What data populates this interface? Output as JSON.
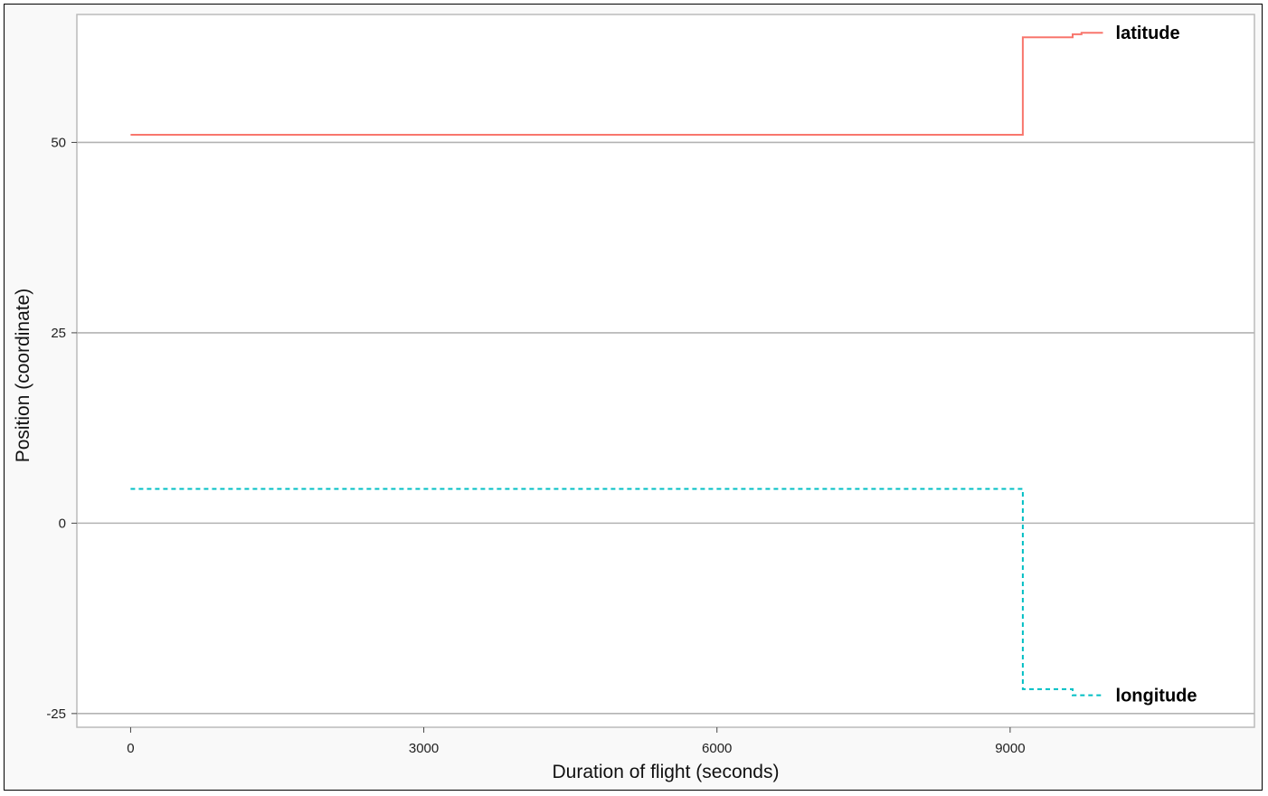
{
  "chart_data": {
    "type": "line",
    "title": "",
    "xlabel": "Duration of flight (seconds)",
    "ylabel": "Position (coordinate)",
    "xlim": [
      -550,
      11500
    ],
    "ylim": [
      -26.8,
      66.8
    ],
    "x_ticks": [
      0,
      3000,
      6000,
      9000
    ],
    "y_ticks": [
      -25,
      0,
      25,
      50
    ],
    "grid": "horizontal major",
    "legend": "direct labels at line ends",
    "series": [
      {
        "name": "latitude",
        "color": "#F8766D",
        "line_style": "solid",
        "step": "hv",
        "points": [
          [
            0,
            51.0
          ],
          [
            9130,
            51.0
          ],
          [
            9130,
            63.8
          ],
          [
            9640,
            63.8
          ],
          [
            9640,
            64.2
          ],
          [
            9730,
            64.2
          ],
          [
            9730,
            64.4
          ],
          [
            9950,
            64.4
          ]
        ]
      },
      {
        "name": "longitude",
        "color": "#00BFC4",
        "line_style": "dashed",
        "step": "hv",
        "points": [
          [
            0,
            4.5
          ],
          [
            9130,
            4.5
          ],
          [
            9130,
            -21.8
          ],
          [
            9640,
            -21.8
          ],
          [
            9640,
            -22.6
          ],
          [
            9950,
            -22.6
          ]
        ]
      }
    ]
  }
}
